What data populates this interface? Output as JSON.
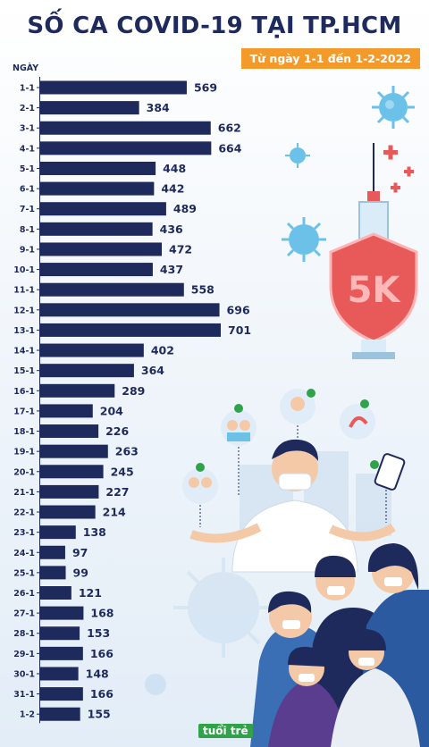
{
  "header": {
    "title": "SỐ CA COVID-19 TẠI TP.HCM",
    "subtitle": "Từ ngày 1-1 đến 1-2-2022"
  },
  "colors": {
    "bar": "#1f2a5c",
    "accent": "#f39a2b",
    "shield": "#e85a5a",
    "virus": "#6cc1e8"
  },
  "illustration": {
    "shield_text": "5K",
    "logo_text": "tuổi trẻ"
  },
  "chart_data": {
    "type": "bar",
    "orientation": "horizontal",
    "title": "SỐ CA COVID-19 TẠI TP.HCM",
    "subtitle": "Từ ngày 1-1 đến 1-2-2022",
    "ylabel": "NGÀY",
    "xlabel": "",
    "xlim": [
      0,
      701
    ],
    "grid": false,
    "categories": [
      "1-1",
      "2-1",
      "3-1",
      "4-1",
      "5-1",
      "6-1",
      "7-1",
      "8-1",
      "9-1",
      "10-1",
      "11-1",
      "12-1",
      "13-1",
      "14-1",
      "15-1",
      "16-1",
      "17-1",
      "18-1",
      "19-1",
      "20-1",
      "21-1",
      "22-1",
      "23-1",
      "24-1",
      "25-1",
      "26-1",
      "27-1",
      "28-1",
      "29-1",
      "30-1",
      "31-1",
      "1-2"
    ],
    "values": [
      569,
      384,
      662,
      664,
      448,
      442,
      489,
      436,
      472,
      437,
      558,
      696,
      701,
      402,
      364,
      289,
      204,
      226,
      263,
      245,
      227,
      214,
      138,
      97,
      99,
      121,
      168,
      153,
      166,
      148,
      166,
      155
    ]
  }
}
